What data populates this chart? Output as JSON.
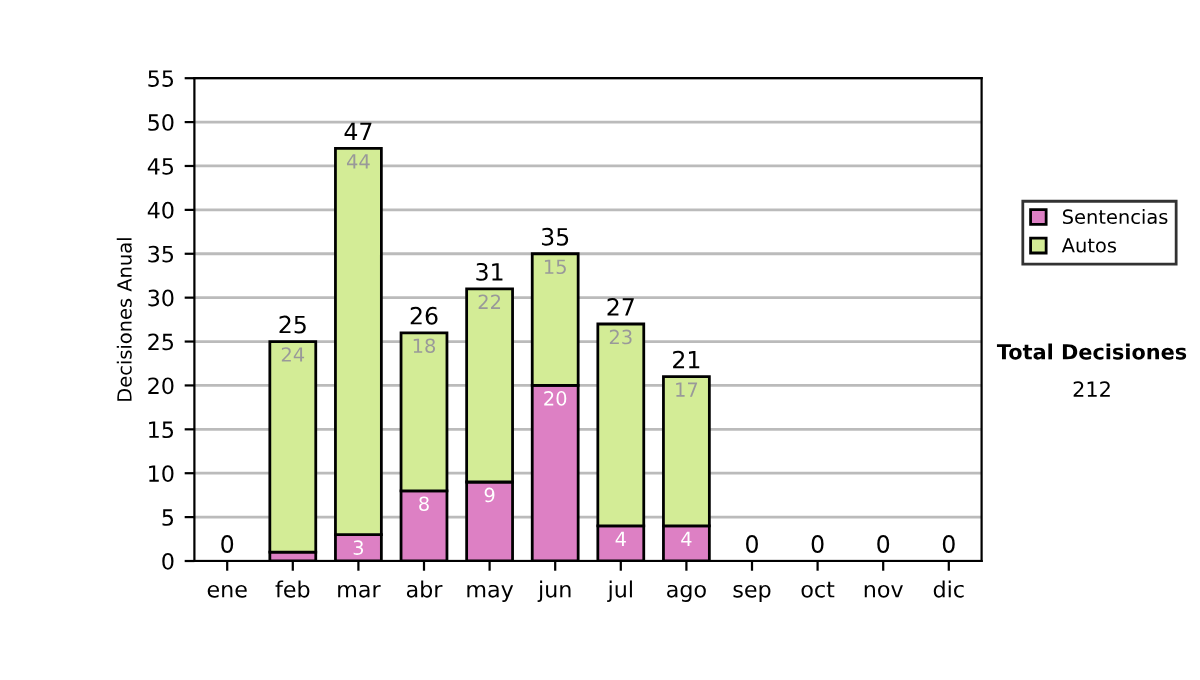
{
  "chart_data": {
    "type": "bar",
    "stacked": true,
    "ylabel": "Decisiones Anual",
    "categories": [
      "ene",
      "feb",
      "mar",
      "abr",
      "may",
      "jun",
      "jul",
      "ago",
      "sep",
      "oct",
      "nov",
      "dic"
    ],
    "series": [
      {
        "name": "Sentencias",
        "color": "#dd80c4",
        "values": [
          0,
          1,
          3,
          8,
          9,
          20,
          4,
          4,
          0,
          0,
          0,
          0
        ],
        "value_labels": [
          null,
          null,
          "3",
          "8",
          "9",
          "20",
          "4",
          "4",
          null,
          null,
          null,
          null
        ]
      },
      {
        "name": "Autos",
        "color": "#d3ec96",
        "values": [
          0,
          24,
          44,
          18,
          22,
          15,
          23,
          17,
          0,
          0,
          0,
          0
        ],
        "value_labels": [
          null,
          "24",
          "44",
          "18",
          "22",
          "15",
          "23",
          "17",
          null,
          null,
          null,
          null
        ]
      }
    ],
    "totals": [
      "0",
      "25",
      "47",
      "26",
      "31",
      "35",
      "27",
      "21",
      "0",
      "0",
      "0",
      "0"
    ],
    "ylim": [
      0,
      55
    ],
    "yticks": [
      0,
      5,
      10,
      15,
      20,
      25,
      30,
      35,
      40,
      45,
      50,
      55
    ],
    "grid": "y",
    "legend": "right",
    "annotations": [
      "Total Decisiones",
      "212"
    ]
  }
}
